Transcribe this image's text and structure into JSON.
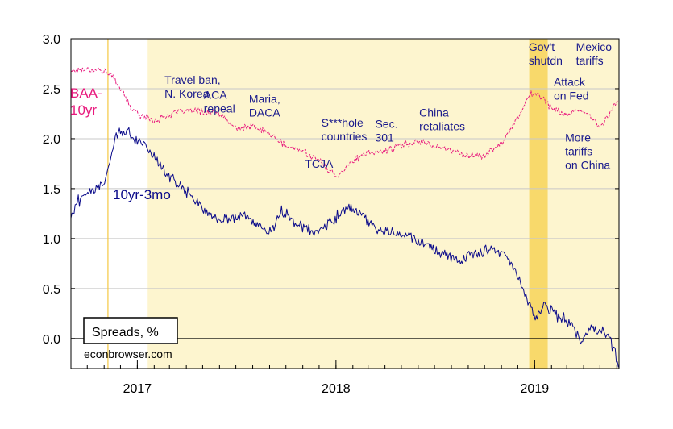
{
  "chart_data": {
    "type": "line",
    "title": "",
    "xlabel": "",
    "ylabel": "",
    "ylim": [
      -0.3,
      3.0
    ],
    "x_range": [
      "2016-09-01",
      "2019-06-05"
    ],
    "y_ticks": [
      "3.0",
      "2.5",
      "2.0",
      "1.5",
      "1.0",
      "0.5",
      "0.0"
    ],
    "x_ticks": [
      {
        "label": "2017",
        "date": "2017-01-01"
      },
      {
        "label": "2018",
        "date": "2018-01-01"
      },
      {
        "label": "2019",
        "date": "2019-01-01"
      }
    ],
    "grid": "horizontal",
    "colors": {
      "baa_10yr": "#e8197d",
      "term_spread": "#0a0a8a",
      "annotation": "#1a1a8c",
      "trump_shade": "#fdf5cf",
      "shutdown_shade": "#f8d96b",
      "election_line": "#f5c842",
      "zero_line": "#000000",
      "gridline": "#c8c8c8"
    },
    "shaded_periods": [
      {
        "start": "2017-01-20",
        "end": "2019-06-05",
        "kind": "trump"
      },
      {
        "start": "2018-12-22",
        "end": "2019-01-25",
        "kind": "shutdown"
      }
    ],
    "vlines": [
      {
        "date": "2016-11-08"
      }
    ],
    "legend": {
      "text": "Spreads, %",
      "placement": "bottom-left"
    },
    "credit": "econbrowser.com",
    "series": [
      {
        "name": "BAA-10yr",
        "label_lines": [
          "BAA-",
          "10yr"
        ],
        "x": [
          "2016-09-01",
          "2016-10-01",
          "2016-11-01",
          "2016-11-20",
          "2016-12-05",
          "2016-12-20",
          "2017-01-10",
          "2017-02-01",
          "2017-03-01",
          "2017-04-01",
          "2017-05-01",
          "2017-06-01",
          "2017-07-01",
          "2017-08-01",
          "2017-09-01",
          "2017-10-01",
          "2017-11-01",
          "2017-12-01",
          "2018-01-01",
          "2018-02-01",
          "2018-03-01",
          "2018-04-01",
          "2018-05-01",
          "2018-06-01",
          "2018-07-01",
          "2018-08-01",
          "2018-09-01",
          "2018-10-01",
          "2018-11-01",
          "2018-12-01",
          "2018-12-24",
          "2019-01-15",
          "2019-02-01",
          "2019-03-01",
          "2019-04-01",
          "2019-05-01",
          "2019-06-04"
        ],
        "values": [
          2.68,
          2.7,
          2.68,
          2.6,
          2.47,
          2.3,
          2.23,
          2.18,
          2.24,
          2.28,
          2.27,
          2.25,
          2.1,
          2.12,
          2.05,
          1.92,
          1.88,
          1.78,
          1.62,
          1.78,
          1.85,
          1.88,
          1.93,
          1.98,
          1.93,
          1.88,
          1.83,
          1.83,
          1.95,
          2.22,
          2.45,
          2.42,
          2.3,
          2.24,
          2.28,
          2.12,
          2.38
        ]
      },
      {
        "name": "10yr-3mo",
        "label_lines": [
          "10yr-3mo"
        ],
        "x": [
          "2016-09-01",
          "2016-09-15",
          "2016-10-01",
          "2016-10-15",
          "2016-11-01",
          "2016-11-10",
          "2016-11-25",
          "2016-12-15",
          "2017-01-01",
          "2017-01-20",
          "2017-02-15",
          "2017-03-15",
          "2017-04-15",
          "2017-05-15",
          "2017-06-15",
          "2017-07-15",
          "2017-08-15",
          "2017-09-01",
          "2017-09-25",
          "2017-10-20",
          "2017-11-15",
          "2017-12-10",
          "2018-01-01",
          "2018-01-25",
          "2018-02-15",
          "2018-03-15",
          "2018-04-15",
          "2018-05-15",
          "2018-06-15",
          "2018-07-15",
          "2018-08-15",
          "2018-09-15",
          "2018-10-15",
          "2018-11-15",
          "2018-12-05",
          "2018-12-24",
          "2019-01-01",
          "2019-01-20",
          "2019-02-15",
          "2019-03-10",
          "2019-03-28",
          "2019-04-15",
          "2019-05-01",
          "2019-05-20",
          "2019-06-04"
        ],
        "values": [
          1.22,
          1.38,
          1.45,
          1.52,
          1.55,
          1.78,
          2.05,
          2.08,
          1.98,
          1.92,
          1.7,
          1.55,
          1.4,
          1.22,
          1.18,
          1.25,
          1.1,
          1.05,
          1.28,
          1.15,
          1.08,
          1.1,
          1.22,
          1.32,
          1.22,
          1.12,
          1.05,
          1.05,
          0.95,
          0.85,
          0.8,
          0.85,
          0.9,
          0.78,
          0.6,
          0.3,
          0.2,
          0.32,
          0.22,
          0.15,
          -0.05,
          0.12,
          0.1,
          0.0,
          -0.25
        ]
      }
    ],
    "annotations": [
      {
        "text_lines": [
          "Travel ban,",
          "N. Korea"
        ],
        "date": "2017-02-20",
        "y": 2.55
      },
      {
        "text_lines": [
          "ACA",
          "repeal"
        ],
        "date": "2017-05-03",
        "y": 2.4
      },
      {
        "text_lines": [
          "Maria,",
          "DACA"
        ],
        "date": "2017-07-25",
        "y": 2.36
      },
      {
        "text_lines": [
          "TCJA"
        ],
        "date": "2017-11-05",
        "y": 1.71
      },
      {
        "text_lines": [
          "S***hole",
          "countries"
        ],
        "date": "2017-12-05",
        "y": 2.12
      },
      {
        "text_lines": [
          "Sec.",
          "301"
        ],
        "date": "2018-03-14",
        "y": 2.11
      },
      {
        "text_lines": [
          "China",
          "retaliates"
        ],
        "date": "2018-06-03",
        "y": 2.22
      },
      {
        "text_lines": [
          "Gov't",
          "shutdn"
        ],
        "date": "2018-12-21",
        "y": 2.88
      },
      {
        "text_lines": [
          "Mexico",
          "tariffs"
        ],
        "date": "2019-03-18",
        "y": 2.88
      },
      {
        "text_lines": [
          "Attack",
          "on Fed"
        ],
        "date": "2019-02-05",
        "y": 2.53
      },
      {
        "text_lines": [
          "More",
          "tariffs",
          "on China"
        ],
        "date": "2019-02-26",
        "y": 1.97
      }
    ]
  }
}
